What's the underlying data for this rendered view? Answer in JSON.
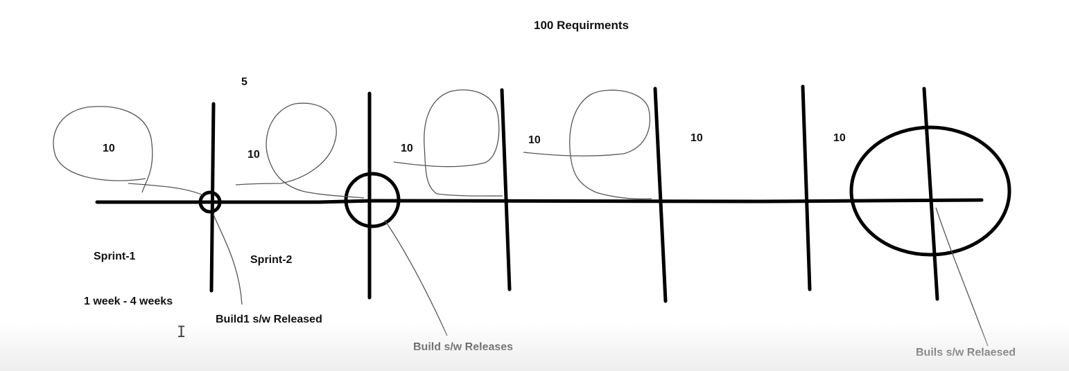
{
  "title": "100 Requirments",
  "count_label": "5",
  "iteration_counts": [
    "10",
    "10",
    "10",
    "10",
    "10",
    "10"
  ],
  "sprint_labels": [
    "Sprint-1",
    "Sprint-2"
  ],
  "duration": "1 week -  4 weeks",
  "release_labels": [
    "Build1 s/w Released",
    "Build s/w Releases",
    "Buils s/w Relaesed"
  ],
  "cursor_glyph": "I"
}
